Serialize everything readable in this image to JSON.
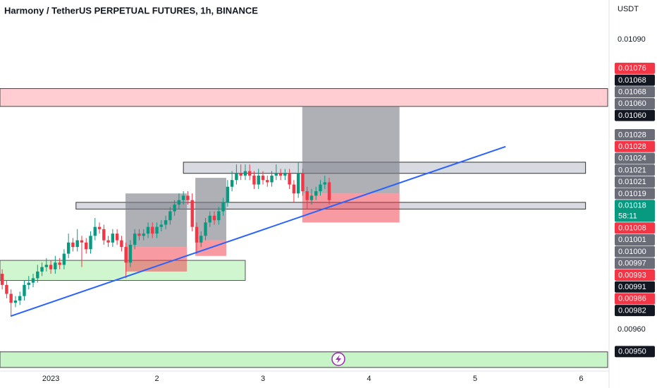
{
  "chart_data": {
    "type": "candlestick",
    "title": "Harmony / TetherUS PERPETUAL FUTURES, 1h, BINANCE",
    "currency": "USDT",
    "up_color": "#089981",
    "down_color": "#f23645",
    "xlim": [
      -11.5,
      126
    ],
    "ylim": [
      0.009417,
      0.011077
    ],
    "xticks": [
      {
        "value": 0,
        "label": "2023"
      },
      {
        "value": 24,
        "label": "2"
      },
      {
        "value": 48,
        "label": "3"
      },
      {
        "value": 72,
        "label": "4"
      },
      {
        "value": 96,
        "label": "5"
      },
      {
        "value": 120,
        "label": "6"
      }
    ],
    "yticks": [
      {
        "value": 0.0109,
        "label": "0.01090"
      },
      {
        "value": 0.0096,
        "label": "0.00960"
      }
    ],
    "x": [
      -11,
      -10,
      -9,
      -8,
      -7,
      -6,
      -5,
      -4,
      -3,
      -2,
      -1,
      0,
      1,
      2,
      3,
      4,
      5,
      6,
      7,
      8,
      9,
      10,
      11,
      12,
      13,
      14,
      15,
      16,
      17,
      18,
      19,
      20,
      21,
      22,
      23,
      24,
      25,
      26,
      27,
      28,
      29,
      30,
      31,
      32,
      33,
      34,
      35,
      36,
      37,
      38,
      39,
      40,
      41,
      42,
      43,
      44,
      45,
      46,
      47,
      48,
      49,
      50,
      51,
      52,
      53,
      54,
      55,
      56,
      57,
      58,
      59,
      60,
      61,
      62,
      63
    ],
    "open": [
      0.00985,
      0.0098,
      0.00976,
      0.00972,
      0.00973,
      0.00975,
      0.0098,
      0.00981,
      0.00983,
      0.00986,
      0.00988,
      0.00989,
      0.00987,
      0.0099,
      0.00989,
      0.00994,
      0.00999,
      0.00997,
      0.01,
      0.00999,
      0.00996,
      0.01002,
      0.01006,
      0.01005,
      0.01,
      0.00999,
      0.01003,
      0.01,
      0.00997,
      0.0099,
      0.00998,
      0.01003,
      0.01002,
      0.01003,
      0.01006,
      0.01003,
      0.01006,
      0.01007,
      0.01009,
      0.01013,
      0.01016,
      0.01018,
      0.0102,
      0.01018,
      0.01006,
      0.00999,
      0.01002,
      0.01008,
      0.01011,
      0.01009,
      0.01013,
      0.01017,
      0.01024,
      0.01027,
      0.0103,
      0.01029,
      0.01031,
      0.01029,
      0.01025,
      0.01029,
      0.01027,
      0.01026,
      0.01029,
      0.0103,
      0.01029,
      0.0103,
      0.01025,
      0.01021,
      0.0103,
      0.01022,
      0.01018,
      0.0102,
      0.01022,
      0.01025,
      0.01026
    ],
    "high": [
      0.00987,
      0.00982,
      0.00978,
      0.00975,
      0.00977,
      0.00982,
      0.00984,
      0.00985,
      0.00989,
      0.0099,
      0.00992,
      0.00991,
      0.00993,
      0.00992,
      0.00996,
      0.01003,
      0.01001,
      0.01005,
      0.01002,
      0.01001,
      0.01004,
      0.0101,
      0.01008,
      0.01007,
      0.01002,
      0.01005,
      0.01005,
      0.01002,
      0.00999,
      0.01,
      0.01005,
      0.01005,
      0.01005,
      0.01008,
      0.01008,
      0.01008,
      0.01009,
      0.01011,
      0.01015,
      0.01018,
      0.01021,
      0.01022,
      0.01022,
      0.01021,
      0.01008,
      0.01004,
      0.0101,
      0.01013,
      0.01013,
      0.01015,
      0.01019,
      0.01027,
      0.01031,
      0.01034,
      0.01034,
      0.01034,
      0.01034,
      0.01031,
      0.01032,
      0.01031,
      0.01029,
      0.01031,
      0.01034,
      0.01032,
      0.01032,
      0.01032,
      0.01027,
      0.01035,
      0.01032,
      0.01024,
      0.01023,
      0.01024,
      0.01027,
      0.01029,
      0.01028
    ],
    "low": [
      0.00978,
      0.00974,
      0.00966,
      0.0097,
      0.00971,
      0.00973,
      0.00978,
      0.00979,
      0.00981,
      0.00984,
      0.00986,
      0.00985,
      0.00985,
      0.00987,
      0.00987,
      0.00992,
      0.00995,
      0.00995,
      0.00988,
      0.00994,
      0.00994,
      0.01,
      0.01003,
      0.00998,
      0.00997,
      0.00997,
      0.00998,
      0.00995,
      0.00983,
      0.00988,
      0.00996,
      0.01,
      0.01,
      0.01001,
      0.01001,
      0.01001,
      0.01004,
      0.01005,
      0.01007,
      0.01011,
      0.01014,
      0.01016,
      0.01016,
      0.01004,
      0.00994,
      0.00997,
      0.01,
      0.01006,
      0.01007,
      0.01007,
      0.01011,
      0.01015,
      0.01022,
      0.01025,
      0.01027,
      0.01027,
      0.01027,
      0.01023,
      0.01023,
      0.01025,
      0.01024,
      0.01024,
      0.01027,
      0.01027,
      0.01027,
      0.01023,
      0.01017,
      0.01019,
      0.0102,
      0.01014,
      0.01016,
      0.01018,
      0.0102,
      0.01023,
      0.01016
    ],
    "close": [
      0.0098,
      0.00976,
      0.00972,
      0.00973,
      0.00975,
      0.0098,
      0.00981,
      0.00983,
      0.00986,
      0.00988,
      0.00989,
      0.00987,
      0.0099,
      0.00989,
      0.00994,
      0.00999,
      0.00997,
      0.01,
      0.00999,
      0.00996,
      0.01002,
      0.01006,
      0.01005,
      0.01,
      0.00999,
      0.01003,
      0.01,
      0.00997,
      0.0099,
      0.00998,
      0.01003,
      0.01002,
      0.01003,
      0.01006,
      0.01003,
      0.01006,
      0.01007,
      0.01009,
      0.01013,
      0.01016,
      0.01018,
      0.0102,
      0.01018,
      0.01006,
      0.00999,
      0.01002,
      0.01008,
      0.01011,
      0.01009,
      0.01013,
      0.01017,
      0.01024,
      0.01027,
      0.0103,
      0.01029,
      0.01031,
      0.01029,
      0.01025,
      0.01029,
      0.01027,
      0.01026,
      0.01029,
      0.0103,
      0.01029,
      0.0103,
      0.01025,
      0.01021,
      0.0103,
      0.01022,
      0.01018,
      0.0102,
      0.01022,
      0.01025,
      0.01026,
      0.01018
    ],
    "bands": [
      {
        "top": 0.01068,
        "bottom": 0.0106,
        "color": "#ffcdd2"
      },
      {
        "top": 0.0095,
        "bottom": 0.00943,
        "color": "#c8f5c8"
      }
    ],
    "boxes": [
      {
        "x0": -11.5,
        "x1": 44,
        "top": 0.00991,
        "bottom": 0.00982,
        "fill": "#c8f5c8",
        "stroke": "#555555"
      },
      {
        "x0": 30,
        "x1": 121,
        "top": 0.01035,
        "bottom": 0.0103,
        "fill": "#d1d4dc",
        "stroke": "#333333"
      },
      {
        "x0": 5.7,
        "x1": 121,
        "top": 0.01017,
        "bottom": 0.01014,
        "fill": "#d1d4dc",
        "stroke": "#333333"
      }
    ],
    "positions": [
      {
        "x0": 16.9,
        "x1": 30.8,
        "target": 0.01021,
        "entry": 0.00997,
        "stop": 0.00986
      },
      {
        "x0": 32.7,
        "x1": 39.7,
        "target": 0.01028,
        "entry": 0.01,
        "stop": 0.00993
      },
      {
        "x0": 56.9,
        "x1": 78.9,
        "target": 0.0106,
        "entry": 0.01021,
        "stop": 0.01008
      }
    ],
    "trend_line": {
      "x": [
        -9.1,
        102.9
      ],
      "y": [
        0.00966,
        0.01042
      ],
      "color": "#2962ff"
    },
    "price_labels": [
      {
        "value": 0.01076,
        "bg": "#f23645"
      },
      {
        "value": 0.01068,
        "bg": "#131722"
      },
      {
        "value": 0.01068,
        "bg": "#6a6d78"
      },
      {
        "value": 0.0106,
        "label": "0.01060",
        "bg": "#6a6d78"
      },
      {
        "value": 0.0106,
        "label": "0.01060",
        "bg": "#131722"
      },
      {
        "value": 0.01028,
        "bg": "#6a6d78"
      },
      {
        "value": 0.01028,
        "bg": "#f23645"
      },
      {
        "value": 0.01024,
        "bg": "#6a6d78"
      },
      {
        "value": 0.01021,
        "bg": "#6a6d78"
      },
      {
        "value": 0.01021,
        "bg": "#6a6d78"
      },
      {
        "value": 0.01019,
        "bg": "#6a6d78"
      },
      {
        "value": 0.01018,
        "bg": "#089981",
        "countdown": "58:11"
      },
      {
        "value": 0.01008,
        "bg": "#f23645"
      },
      {
        "value": 0.01001,
        "bg": "#6a6d78"
      },
      {
        "value": 0.01,
        "label": "0.01000",
        "bg": "#6a6d78"
      },
      {
        "value": 0.00997,
        "bg": "#6a6d78"
      },
      {
        "value": 0.00993,
        "bg": "#f23645"
      },
      {
        "value": 0.00991,
        "bg": "#131722"
      },
      {
        "value": 0.00986,
        "bg": "#f23645"
      },
      {
        "value": 0.00982,
        "bg": "#131722"
      },
      {
        "value": 0.0095,
        "label": "0.00950",
        "bg": "#131722"
      }
    ]
  }
}
